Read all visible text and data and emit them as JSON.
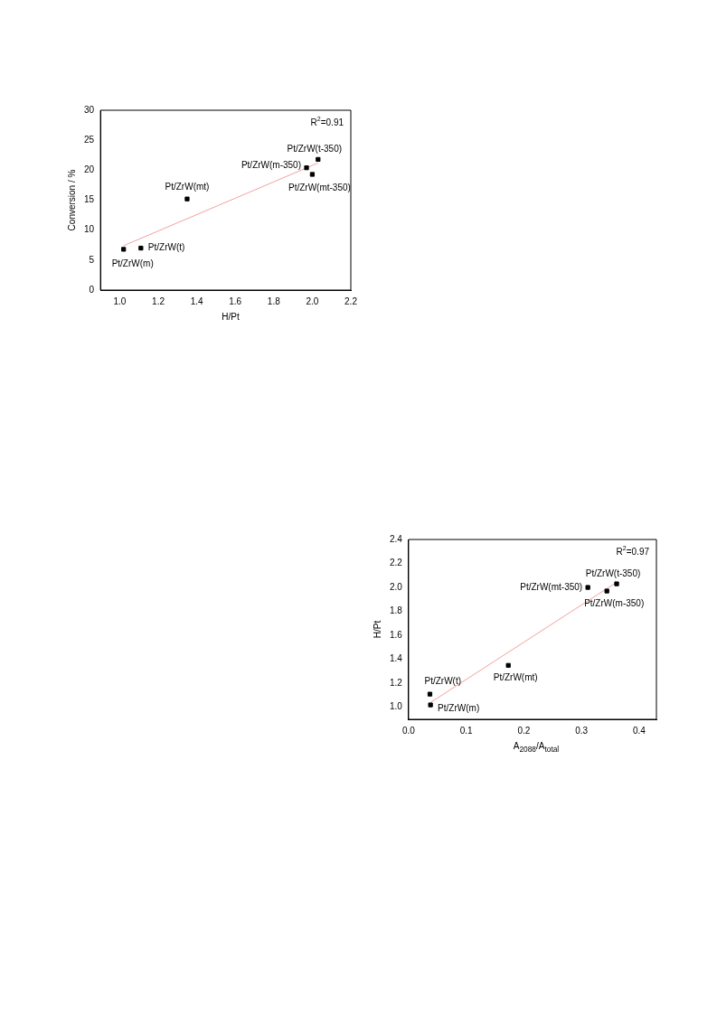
{
  "chart_data": [
    {
      "type": "scatter",
      "xlabel": "H/Pt",
      "ylabel": "Conversion / %",
      "xlim": [
        0.9,
        2.2
      ],
      "xticks": [
        {
          "value": 1,
          "label": "1.0"
        },
        1.2,
        1.4,
        1.6,
        1.8,
        {
          "value": 2,
          "label": "2.0"
        },
        2.2
      ],
      "ylim": [
        0,
        30
      ],
      "yticks": [
        0,
        5,
        10,
        15,
        20,
        25,
        30
      ],
      "series": [
        {
          "marker": "square",
          "color": "#000000",
          "x": [
            1.02,
            1.11,
            1.35,
            1.97,
            2.0,
            2.03
          ],
          "values": [
            6.8,
            7.0,
            15.2,
            20.4,
            19.3,
            21.8
          ]
        },
        {
          "type": "line",
          "marker": "none",
          "color": "#f4a0a0",
          "x": [
            1.02,
            2.03
          ],
          "values": [
            7.4,
            21.2
          ]
        }
      ],
      "annotations": [
        "R$^{2}$=0.91",
        {
          "text": "Pt/ZrW(m)",
          "x": 1.02,
          "y": 6.8
        },
        {
          "text": "Pt/ZrW(t)",
          "x": 1.11,
          "y": 7.0
        },
        {
          "text": "Pt/ZrW(mt)",
          "x": 1.35,
          "y": 15.2
        },
        {
          "text": "Pt/ZrW(m-350)",
          "x": 1.97,
          "y": 20.4
        },
        {
          "text": "Pt/ZrW(mt-350)",
          "x": 2.0,
          "y": 19.3
        },
        {
          "text": "Pt/ZrW(t-350)",
          "x": 2.03,
          "y": 21.8
        }
      ]
    },
    {
      "type": "scatter",
      "xlabel": "A$_{2088}$/A$_{total}$",
      "ylabel": "H/Pt",
      "xlim": [
        0,
        0.43
      ],
      "xticks": [
        {
          "value": 0,
          "label": "0.0"
        },
        0.1,
        0.2,
        0.3,
        0.4
      ],
      "ylim": [
        0.9,
        2.4
      ],
      "yticks": [
        {
          "value": 1,
          "label": "1.0"
        },
        1.2,
        1.4,
        1.6,
        1.8,
        {
          "value": 2,
          "label": "2.0"
        },
        2.2,
        2.4
      ],
      "series": [
        {
          "marker": "square",
          "color": "#000000",
          "x": [
            0.037,
            0.038,
            0.173,
            0.311,
            0.344,
            0.361
          ],
          "values": [
            1.11,
            1.02,
            1.35,
            2.0,
            1.97,
            2.03
          ]
        },
        {
          "type": "line",
          "marker": "none",
          "color": "#f4a0a0",
          "x": [
            0.038,
            0.36
          ],
          "values": [
            1.04,
            2.04
          ]
        }
      ],
      "annotations": [
        "R$^{2}$=0.97",
        {
          "text": "Pt/ZrW(t)",
          "x": 0.037,
          "y": 1.11
        },
        {
          "text": "Pt/ZrW(m)",
          "x": 0.038,
          "y": 1.02
        },
        {
          "text": "Pt/ZrW(mt)",
          "x": 0.173,
          "y": 1.35
        },
        {
          "text": "Pt/ZrW(mt-350)",
          "x": 0.311,
          "y": 2.0
        },
        {
          "text": "Pt/ZrW(m-350)",
          "x": 0.344,
          "y": 1.97
        },
        {
          "text": "Pt/ZrW(t-350)",
          "x": 0.361,
          "y": 2.03
        }
      ]
    }
  ]
}
